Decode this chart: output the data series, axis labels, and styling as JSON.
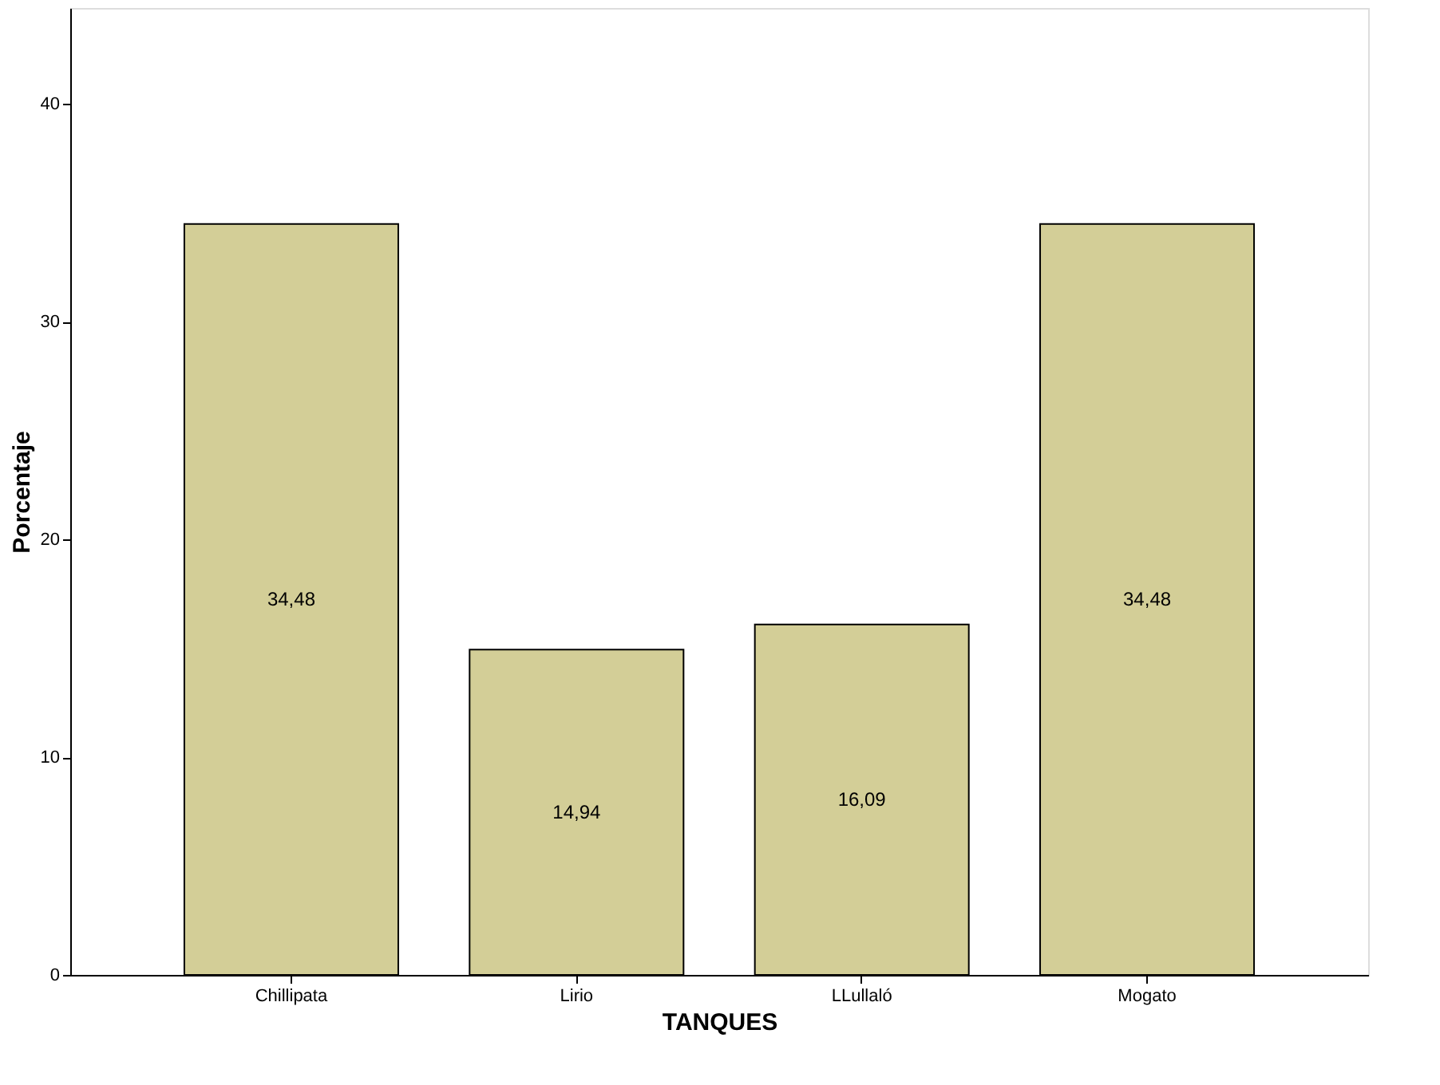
{
  "chart_data": {
    "type": "bar",
    "xlabel": "TANQUES",
    "ylabel": "Porcentaje",
    "categories": [
      "Chillipata",
      "Lirio",
      "LLullaló",
      "Mogato"
    ],
    "values": [
      34.48,
      14.94,
      16.09,
      34.48
    ],
    "value_labels": [
      "34,48",
      "14,94",
      "16,09",
      "34,48"
    ],
    "color": "#d3ce97",
    "ylim": [
      0,
      44.4
    ],
    "yticks": [
      0,
      10,
      20,
      30,
      40
    ],
    "grid": false
  }
}
